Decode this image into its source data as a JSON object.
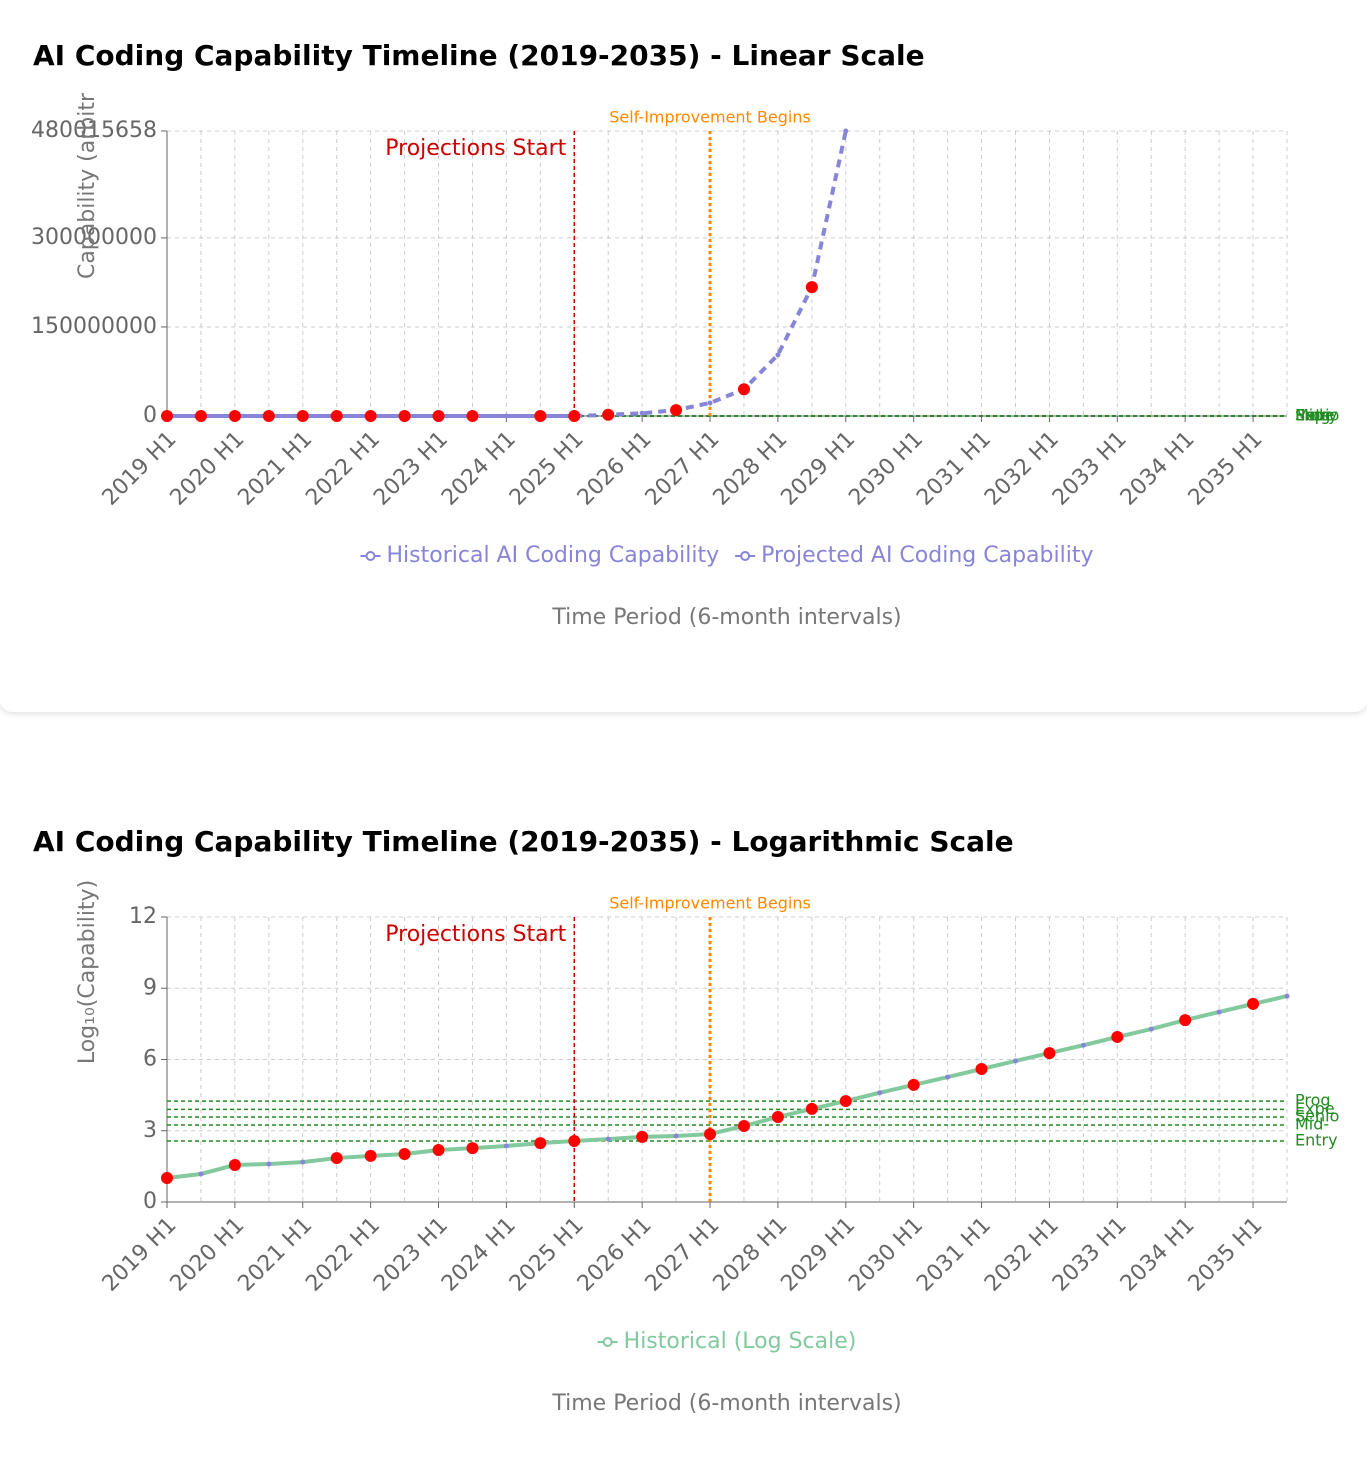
{
  "chart_data": [
    {
      "type": "line",
      "title": "AI Coding Capability Timeline (2019-2035) - Linear Scale",
      "y_label": "Capability (arbitr",
      "x_label": "Time Period (6-month intervals)",
      "categories": [
        "2019 H1",
        null,
        "2020 H1",
        null,
        "2021 H1",
        null,
        "2022 H1",
        null,
        "2023 H1",
        null,
        "2024 H1",
        null,
        "2025 H1",
        null,
        "2026 H1",
        null,
        "2027 H1",
        null,
        "2028 H1",
        null,
        "2029 H1",
        null,
        "2030 H1",
        null,
        "2031 H1",
        null,
        "2032 H1",
        null,
        "2033 H1",
        null,
        "2034 H1",
        null,
        "2035 H1",
        null
      ],
      "ylim": [
        0,
        480015658
      ],
      "yticks": [
        0,
        150000000,
        300000000,
        480015658
      ],
      "grid": true,
      "series": [
        {
          "name": "Historical AI Coding Capability",
          "color": "#8884d8",
          "values": [
            10,
            15,
            36,
            40,
            48,
            71,
            87,
            105,
            155,
            186,
            229,
            302,
            372,
            null,
            null,
            null,
            null,
            null,
            null,
            null,
            null,
            null,
            null,
            null,
            null,
            null,
            null,
            null,
            null,
            null,
            null,
            null,
            null,
            null
          ]
        },
        {
          "name": "Projected AI Coding Capability",
          "color": "#8884d8",
          "dashed": true,
          "values": [
            null,
            null,
            null,
            null,
            null,
            null,
            null,
            null,
            null,
            null,
            null,
            null,
            372,
            2100000,
            4600000,
            10000000,
            22000000,
            45000000,
            103000000,
            217000000,
            480015658,
            null,
            null,
            null,
            null,
            null,
            null,
            null,
            null,
            null,
            null,
            null,
            null,
            null
          ]
        },
        {
          "color": "#ff0000",
          "marker_only": true,
          "values": [
            10,
            15,
            36,
            40,
            48,
            71,
            87,
            105,
            155,
            186,
            null,
            302,
            372,
            2100000,
            null,
            10000000,
            null,
            45000000,
            null,
            217000000,
            null,
            null,
            null,
            null,
            null,
            null,
            null,
            null,
            null,
            null,
            null,
            null,
            null,
            null
          ]
        }
      ],
      "reference_lines": [
        {
          "value": 17800,
          "label": "Prog"
        },
        {
          "value": 7900,
          "label": "Expe"
        },
        {
          "value": 3800,
          "label": "Senio"
        },
        {
          "value": 1740,
          "label": "Mid-"
        },
        {
          "value": 370,
          "label": "Entry"
        }
      ],
      "reference_color": "#228b22",
      "annotations": [
        {
          "x": "2025 H1",
          "label": "Projections Start",
          "color": "#cc0000"
        },
        {
          "x": "2027 H1",
          "label": "Self-Improvement Begins",
          "color": "#ff8800"
        }
      ]
    },
    {
      "type": "line",
      "title": "AI Coding Capability Timeline (2019-2035) - Logarithmic Scale",
      "y_label": "Log₁₀(Capability)",
      "x_label": "Time Period (6-month intervals)",
      "categories": [
        "2019 H1",
        null,
        "2020 H1",
        null,
        "2021 H1",
        null,
        "2022 H1",
        null,
        "2023 H1",
        null,
        "2024 H1",
        null,
        "2025 H1",
        null,
        "2026 H1",
        null,
        "2027 H1",
        null,
        "2028 H1",
        null,
        "2029 H1",
        null,
        "2030 H1",
        null,
        "2031 H1",
        null,
        "2032 H1",
        null,
        "2033 H1",
        null,
        "2034 H1",
        null,
        "2035 H1",
        null
      ],
      "ylim": [
        0,
        12
      ],
      "yticks": [
        0,
        3,
        6,
        9,
        12
      ],
      "grid": true,
      "series": [
        {
          "name": "Historical (Log Scale)",
          "color": "#82ca9d",
          "dot_color": "#8884d8",
          "values": [
            1.01,
            1.18,
            1.56,
            1.6,
            1.68,
            1.85,
            1.94,
            2.02,
            2.19,
            2.27,
            2.36,
            2.48,
            2.57,
            2.65,
            2.74,
            2.78,
            2.86,
            3.2,
            3.58,
            3.92,
            4.25,
            4.6,
            4.93,
            5.26,
            5.6,
            5.94,
            6.27,
            6.6,
            6.95,
            7.28,
            7.66,
            8.0,
            8.34,
            8.67
          ]
        },
        {
          "color": "#ff0000",
          "marker_only": true,
          "values": [
            1.01,
            null,
            1.56,
            null,
            null,
            1.85,
            1.94,
            2.02,
            2.19,
            2.27,
            null,
            2.48,
            2.57,
            null,
            2.74,
            null,
            2.86,
            3.2,
            3.58,
            3.92,
            4.25,
            null,
            4.93,
            null,
            5.6,
            null,
            6.27,
            null,
            6.95,
            null,
            7.66,
            null,
            8.34,
            null
          ]
        }
      ],
      "reference_lines": [
        {
          "value": 4.25,
          "label": "Prog"
        },
        {
          "value": 3.9,
          "label": "Expe"
        },
        {
          "value": 3.58,
          "label": "Senio"
        },
        {
          "value": 3.24,
          "label": "Mid-"
        },
        {
          "value": 2.57,
          "label": "Entry"
        }
      ],
      "reference_color": "#228b22",
      "annotations": [
        {
          "x": "2025 H1",
          "label": "Projections Start",
          "color": "#cc0000"
        },
        {
          "x": "2027 H1",
          "label": "Self-Improvement Begins",
          "color": "#ff8800"
        }
      ]
    }
  ]
}
